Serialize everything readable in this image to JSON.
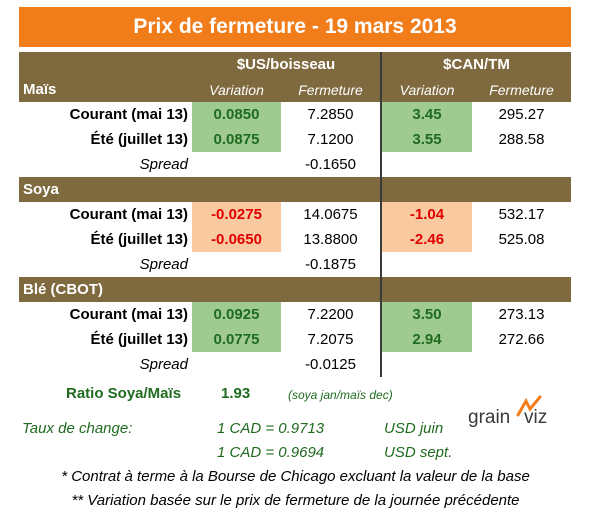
{
  "title": "Prix de fermeture - 19 mars 2013",
  "headers": {
    "usd_group": "$US/boisseau",
    "cad_group": "$CAN/TM",
    "variation": "Variation",
    "fermeture": "Fermeture"
  },
  "sections": [
    {
      "name": "Maïs",
      "rows": [
        {
          "label": "Courant (mai 13)",
          "usd_var": "0.0850",
          "usd_close": "7.2850",
          "cad_var": "3.45",
          "cad_close": "295.27"
        },
        {
          "label": "Été (juillet 13)",
          "usd_var": "0.0875",
          "usd_close": "7.1200",
          "cad_var": "3.55",
          "cad_close": "288.58"
        }
      ],
      "spread_label": "Spread",
      "spread_value": "-0.1650"
    },
    {
      "name": "Soya",
      "rows": [
        {
          "label": "Courant (mai 13)",
          "usd_var": "-0.0275",
          "usd_close": "14.0675",
          "cad_var": "-1.04",
          "cad_close": "532.17"
        },
        {
          "label": "Été (juillet 13)",
          "usd_var": "-0.0650",
          "usd_close": "13.8800",
          "cad_var": "-2.46",
          "cad_close": "525.08"
        }
      ],
      "spread_label": "Spread",
      "spread_value": "-0.1875"
    },
    {
      "name": "Blé (CBOT)",
      "rows": [
        {
          "label": "Courant (mai 13)",
          "usd_var": "0.0925",
          "usd_close": "7.2200",
          "cad_var": "3.50",
          "cad_close": "273.13"
        },
        {
          "label": "Été (juillet 13)",
          "usd_var": "0.0775",
          "usd_close": "7.2075",
          "cad_var": "2.94",
          "cad_close": "272.66"
        }
      ],
      "spread_label": "Spread",
      "spread_value": "-0.0125"
    }
  ],
  "ratio": {
    "label": "Ratio Soya/Maïs",
    "value": "1.93",
    "note": "(soya jan/maïs dec)"
  },
  "exchange": {
    "label": "Taux de change:",
    "rate1": "1 CAD =  0.9713",
    "unit1": "USD juin",
    "rate2": "1 CAD =  0.9694",
    "unit2": "USD sept."
  },
  "notes": {
    "n1": "* Contrat à terme à la Bourse de Chicago excluant la valeur de la base",
    "n2": "** Variation basée sur le prix de fermeture de la journée précédente"
  },
  "logo": {
    "text_left": "grain",
    "text_right": "viz"
  },
  "colors": {
    "title_bg": "#f07c1a",
    "header_bg": "#7f6a3f",
    "positive_bg": "#9fcb92",
    "positive_text": "#1f6b1f",
    "negative_bg": "#f9caa0",
    "negative_text": "#e00000"
  }
}
